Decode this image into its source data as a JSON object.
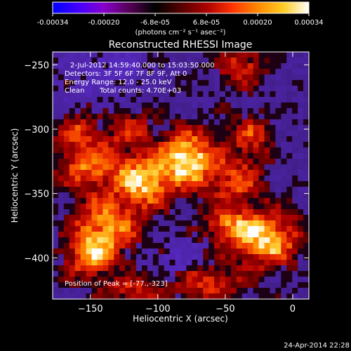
{
  "colorbar": {
    "ticks": [
      "-0.00034",
      "-0.00020",
      "-6.8e-05",
      "6.8e-05",
      "0.00020",
      "0.00034"
    ],
    "units_label": "(photons cm⁻² s⁻¹ asec⁻²)",
    "stops": [
      "#0000ff",
      "#4400ff",
      "#8800cc",
      "#550055",
      "#000000",
      "#550000",
      "#aa0000",
      "#ff3300",
      "#ff8800",
      "#ffcc22",
      "#ffffff"
    ]
  },
  "chart_data": {
    "type": "heatmap",
    "title": "Reconstructed RHESSI Image",
    "xlabel": "Heliocentric X (arcsec)",
    "ylabel": "Heliocentric Y (arcsec)",
    "xlim": [
      -178,
      12
    ],
    "ylim": [
      -432,
      -240
    ],
    "xticks": [
      {
        "value": -150,
        "label": "−150"
      },
      {
        "value": -100,
        "label": "−100"
      },
      {
        "value": -50,
        "label": "−50"
      },
      {
        "value": 0,
        "label": "0"
      }
    ],
    "yticks": [
      {
        "value": -250,
        "label": "−250"
      },
      {
        "value": -300,
        "label": "−300"
      },
      {
        "value": -350,
        "label": "−350"
      },
      {
        "value": -400,
        "label": "−400"
      }
    ],
    "annotations": [
      "2-Jul-2012 14:59:40.000 to 15:03:50.000",
      "Detectors: 3F 5F 6F 7F 8F 9F, Att 0",
      "Energy Range: 12.0 - 25.0 keV",
      "Clean",
      "Total counts: 4.70E+03"
    ],
    "peak_label": "Position of Peak = [-77.,-323]",
    "peak": {
      "x": -77,
      "y": -323
    },
    "sources": [
      {
        "x": -77,
        "y": -323,
        "amp": 1.0,
        "sx": 14,
        "sy": 16
      },
      {
        "x": -110,
        "y": -340,
        "amp": 0.85,
        "sx": 14,
        "sy": 15
      },
      {
        "x": -150,
        "y": -328,
        "amp": 0.7,
        "sx": 18,
        "sy": 14
      },
      {
        "x": -138,
        "y": -375,
        "amp": 0.75,
        "sx": 18,
        "sy": 16
      },
      {
        "x": -150,
        "y": -400,
        "amp": 0.65,
        "sx": 14,
        "sy": 12
      },
      {
        "x": -20,
        "y": -385,
        "amp": 0.9,
        "sx": 18,
        "sy": 16
      },
      {
        "x": -50,
        "y": -375,
        "amp": 0.55,
        "sx": 12,
        "sy": 10
      },
      {
        "x": -42,
        "y": -340,
        "amp": 0.55,
        "sx": 14,
        "sy": 14
      },
      {
        "x": -38,
        "y": -250,
        "amp": 0.55,
        "sx": 14,
        "sy": 12
      },
      {
        "x": -120,
        "y": -300,
        "amp": 0.45,
        "sx": 12,
        "sy": 10
      },
      {
        "x": -30,
        "y": -305,
        "amp": 0.5,
        "sx": 12,
        "sy": 12
      },
      {
        "x": -60,
        "y": -420,
        "amp": 0.55,
        "sx": 16,
        "sy": 10
      },
      {
        "x": -115,
        "y": -425,
        "amp": 0.5,
        "sx": 18,
        "sy": 8
      },
      {
        "x": -160,
        "y": -300,
        "amp": 0.45,
        "sx": 12,
        "sy": 10
      }
    ],
    "dark_regions": [
      {
        "x": -150,
        "y": -260,
        "amp": 0.45,
        "sx": 22,
        "sy": 18
      },
      {
        "x": -80,
        "y": -400,
        "amp": 0.4,
        "sx": 20,
        "sy": 14
      },
      {
        "x": -120,
        "y": -250,
        "amp": 0.3,
        "sx": 14,
        "sy": 10
      }
    ]
  },
  "footer": {
    "timestamp": "24-Apr-2014 22:28"
  }
}
